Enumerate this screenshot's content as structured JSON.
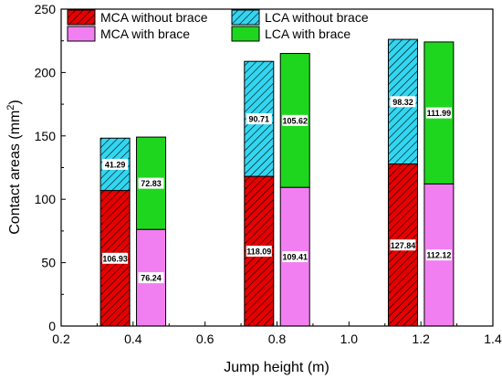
{
  "chart_data": {
    "type": "bar",
    "stacked": true,
    "xlabel": "Jump height (m)",
    "ylabel": "Contact areas (mm",
    "ylabel_superscript": "2",
    "ylabel_suffix": ")",
    "xlim": [
      0.2,
      1.4
    ],
    "ylim": [
      0,
      250
    ],
    "xticks": [
      "0.2",
      "0.4",
      "0.6",
      "0.8",
      "1.0",
      "1.2",
      "1.4"
    ],
    "yticks": [
      "0",
      "50",
      "100",
      "150",
      "200",
      "250"
    ],
    "grid": false,
    "legend_position": "top",
    "heights": [
      0.4,
      0.8,
      1.2
    ],
    "groups": [
      {
        "name": "without brace",
        "offset": -0.05,
        "segments": [
          {
            "name": "MCA without brace",
            "color": "#e60000",
            "pattern": "hatch",
            "values": [
              106.93,
              118.09,
              127.84
            ]
          },
          {
            "name": "LCA without brace",
            "color": "#33d6f0",
            "pattern": "hatch",
            "values": [
              41.29,
              90.71,
              98.32
            ]
          }
        ]
      },
      {
        "name": "with brace",
        "offset": 0.05,
        "segments": [
          {
            "name": "MCA with brace",
            "color": "#f27ff2",
            "pattern": "solid",
            "values": [
              76.24,
              109.41,
              112.12
            ]
          },
          {
            "name": "LCA with brace",
            "color": "#1fd61f",
            "pattern": "solid",
            "values": [
              72.83,
              105.62,
              111.99
            ]
          }
        ]
      }
    ],
    "legend": [
      {
        "label": "MCA without brace",
        "color": "#e60000",
        "pattern": "hatch"
      },
      {
        "label": "LCA without brace",
        "color": "#33d6f0",
        "pattern": "hatch"
      },
      {
        "label": "MCA with brace",
        "color": "#f27ff2",
        "pattern": "solid"
      },
      {
        "label": "LCA with brace",
        "color": "#1fd61f",
        "pattern": "solid"
      }
    ]
  }
}
